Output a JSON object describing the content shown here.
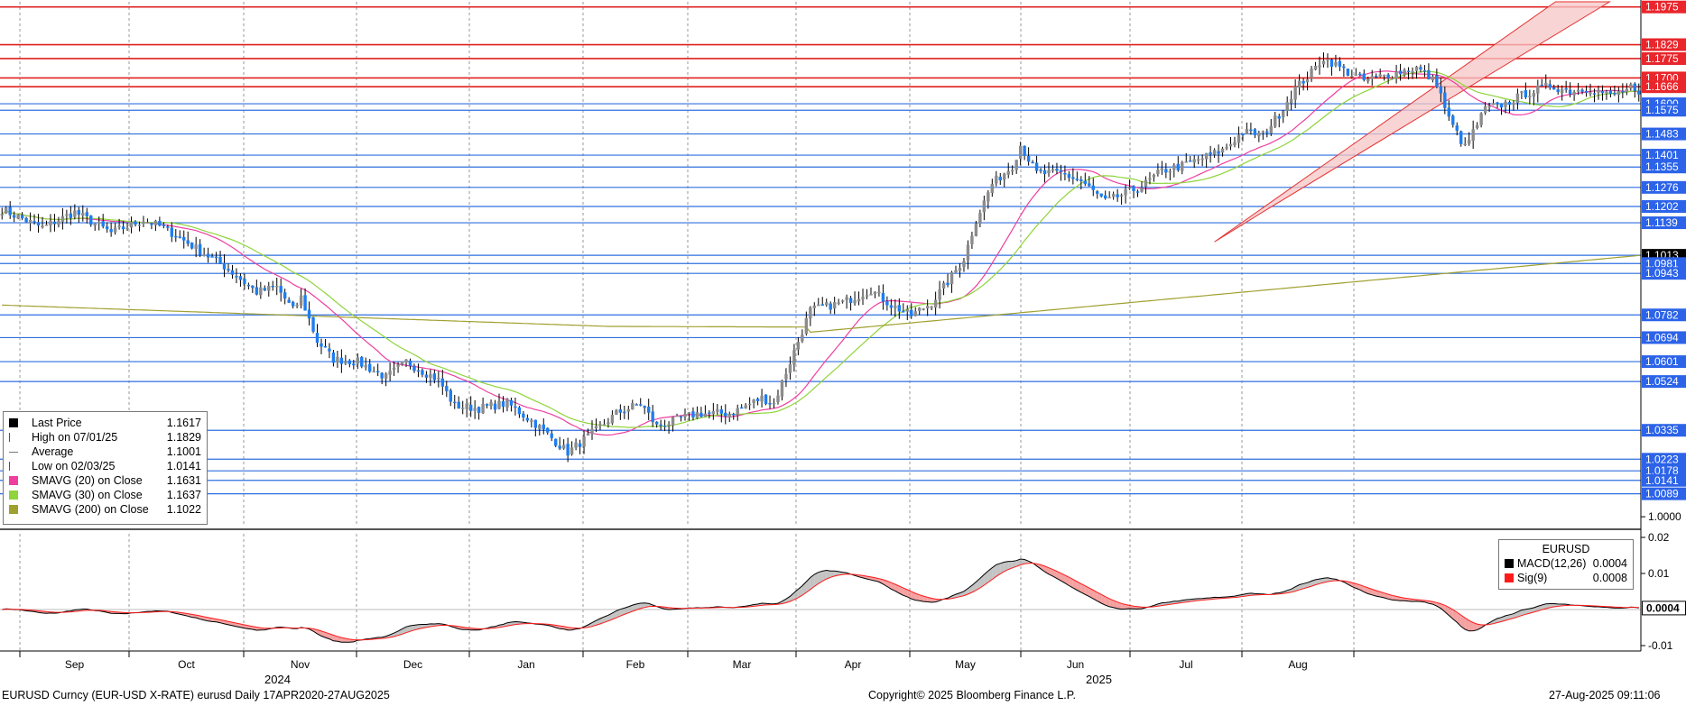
{
  "chart_data": [
    {
      "type": "candlestick",
      "instrument": "EURUSD",
      "ylim": [
        0.9962,
        1.1995
      ],
      "x_months": [
        "Sep",
        "Oct",
        "Nov",
        "Dec",
        "Jan",
        "Feb",
        "Mar",
        "Apr",
        "May",
        "Jun",
        "Jul",
        "Aug"
      ],
      "x_years": [
        "2024",
        "2025"
      ],
      "price_axis_ticks": [
        1.0
      ],
      "price_levels": [
        {
          "value": 1.1975,
          "label": "1.1975",
          "color": "#e8262b"
        },
        {
          "value": 1.1829,
          "label": "1.1829",
          "color": "#e8262b"
        },
        {
          "value": 1.1775,
          "label": "1.1775",
          "color": "#e8262b"
        },
        {
          "value": 1.17,
          "label": "1.1700",
          "color": "#e8262b"
        },
        {
          "value": 1.1666,
          "label": "1.1666",
          "color": "#e8262b"
        },
        {
          "value": 1.16,
          "label": "1.1600",
          "color": "#2c63e8"
        },
        {
          "value": 1.1575,
          "label": "1.1575",
          "color": "#2c63e8"
        },
        {
          "value": 1.1483,
          "label": "1.1483",
          "color": "#2c63e8"
        },
        {
          "value": 1.1401,
          "label": "1.1401",
          "color": "#2c63e8"
        },
        {
          "value": 1.1355,
          "label": "1.1355",
          "color": "#2c63e8"
        },
        {
          "value": 1.1276,
          "label": "1.1276",
          "color": "#2c63e8"
        },
        {
          "value": 1.1202,
          "label": "1.1202",
          "color": "#2c63e8"
        },
        {
          "value": 1.1139,
          "label": "1.1139",
          "color": "#2c63e8"
        },
        {
          "value": 1.1013,
          "label": "1.1013",
          "color": "#000000"
        },
        {
          "value": 1.0981,
          "label": "1.0981",
          "color": "#2c63e8"
        },
        {
          "value": 1.0943,
          "label": "1.0943",
          "color": "#2c63e8"
        },
        {
          "value": 1.0782,
          "label": "1.0782",
          "color": "#2c63e8"
        },
        {
          "value": 1.0694,
          "label": "1.0694",
          "color": "#2c63e8"
        },
        {
          "value": 1.0601,
          "label": "1.0601",
          "color": "#2c63e8"
        },
        {
          "value": 1.0524,
          "label": "1.0524",
          "color": "#2c63e8"
        },
        {
          "value": 1.0335,
          "label": "1.0335",
          "color": "#2c63e8"
        },
        {
          "value": 1.0223,
          "label": "1.0223",
          "color": "#2c63e8"
        },
        {
          "value": 1.0178,
          "label": "1.0178",
          "color": "#2c63e8"
        },
        {
          "value": 1.0141,
          "label": "1.0141",
          "color": "#2c63e8"
        },
        {
          "value": 1.0089,
          "label": "1.0089",
          "color": "#2c63e8"
        }
      ],
      "price_path": [
        [
          0,
          1.119
        ],
        [
          10,
          1.112
        ],
        [
          18,
          1.118
        ],
        [
          27,
          1.11
        ],
        [
          35,
          1.115
        ],
        [
          40,
          1.112
        ],
        [
          55,
          1.097
        ],
        [
          63,
          1.087
        ],
        [
          68,
          1.089
        ],
        [
          72,
          1.08
        ],
        [
          74,
          1.085
        ],
        [
          78,
          1.068
        ],
        [
          82,
          1.061
        ],
        [
          88,
          1.06
        ],
        [
          95,
          1.054
        ],
        [
          100,
          1.06
        ],
        [
          108,
          1.053
        ],
        [
          112,
          1.043
        ],
        [
          118,
          1.042
        ],
        [
          125,
          1.044
        ],
        [
          132,
          1.036
        ],
        [
          140,
          1.025
        ],
        [
          145,
          1.031
        ],
        [
          152,
          1.04
        ],
        [
          158,
          1.044
        ],
        [
          162,
          1.035
        ],
        [
          172,
          1.04
        ],
        [
          180,
          1.04
        ],
        [
          188,
          1.046
        ],
        [
          191,
          1.044
        ],
        [
          196,
          1.064
        ],
        [
          200,
          1.08
        ],
        [
          208,
          1.083
        ],
        [
          215,
          1.088
        ],
        [
          220,
          1.082
        ],
        [
          225,
          1.078
        ],
        [
          230,
          1.083
        ],
        [
          234,
          1.091
        ],
        [
          238,
          1.1
        ],
        [
          241,
          1.115
        ],
        [
          245,
          1.129
        ],
        [
          250,
          1.136
        ],
        [
          252,
          1.144
        ],
        [
          256,
          1.133
        ],
        [
          262,
          1.133
        ],
        [
          267,
          1.13
        ],
        [
          270,
          1.126
        ],
        [
          273,
          1.122
        ],
        [
          276,
          1.124
        ],
        [
          282,
          1.128
        ],
        [
          287,
          1.134
        ],
        [
          292,
          1.136
        ],
        [
          297,
          1.139
        ],
        [
          302,
          1.142
        ],
        [
          307,
          1.149
        ],
        [
          312,
          1.148
        ],
        [
          316,
          1.156
        ],
        [
          320,
          1.166
        ],
        [
          324,
          1.172
        ],
        [
          327,
          1.178
        ],
        [
          332,
          1.173
        ],
        [
          337,
          1.169
        ],
        [
          345,
          1.172
        ],
        [
          350,
          1.174
        ],
        [
          355,
          1.168
        ],
        [
          358,
          1.154
        ],
        [
          362,
          1.143
        ],
        [
          367,
          1.158
        ],
        [
          372,
          1.16
        ],
        [
          377,
          1.164
        ],
        [
          383,
          1.167
        ],
        [
          388,
          1.165
        ],
        [
          393,
          1.166
        ],
        [
          398,
          1.163
        ],
        [
          403,
          1.166
        ],
        [
          405,
          1.162
        ]
      ],
      "legend": [
        {
          "name": "Last Price",
          "value": "1.1617"
        },
        {
          "name": "High on 07/01/25",
          "value": "1.1829"
        },
        {
          "name": "Average",
          "value": "1.1001"
        },
        {
          "name": "Low on 02/03/25",
          "value": "1.0141"
        },
        {
          "name": "SMAVG (20)  on Close",
          "value": "1.1631"
        },
        {
          "name": "SMAVG (30)  on Close",
          "value": "1.1637"
        },
        {
          "name": "SMAVG (200)  on Close",
          "value": "1.1022"
        }
      ]
    },
    {
      "type": "line",
      "title": "EURUSD",
      "ylim": [
        -0.0115,
        0.021
      ],
      "y_ticks": [
        "0.02",
        "0.01",
        "-0.01"
      ],
      "last_value": "0.0004",
      "series": [
        {
          "name": "MACD(12,26)",
          "value": "0.0004"
        },
        {
          "name": "Sig(9)",
          "value": "0.0008"
        }
      ]
    }
  ],
  "colors": {
    "up": "#8c8c8c",
    "down": "#1f7df0",
    "sma20": "#ee3fa0",
    "sma30": "#8fd43a",
    "sma200": "#a0a030",
    "macd": "#000000",
    "signal": "#ff1a1a",
    "channel_fill": "#f7c6c6",
    "channel_edge": "#e53232"
  },
  "footer": {
    "left": "EURUSD Curncy (EUR-USD X-RATE) eurusd  Daily 17APR2020-27AUG2025",
    "center": "Copyright© 2025 Bloomberg Finance L.P.",
    "right": "27-Aug-2025 09:11:06"
  }
}
